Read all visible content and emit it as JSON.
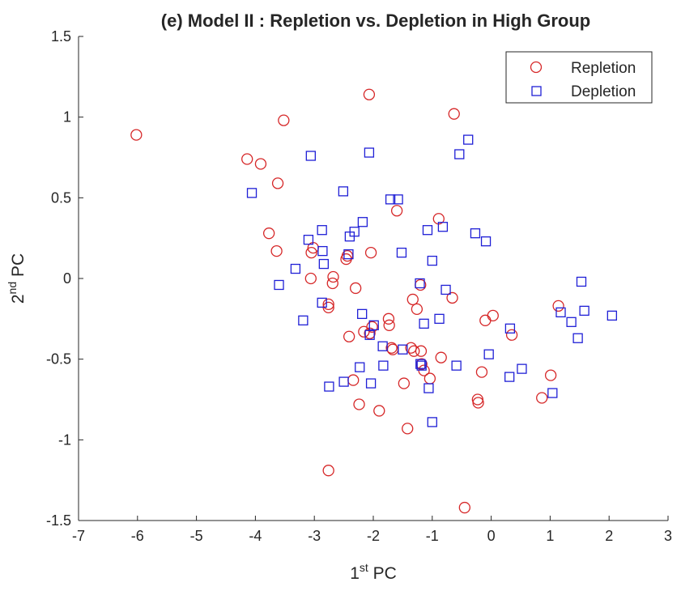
{
  "chart_data": {
    "type": "scatter",
    "title": "(e) Model II : Repletion vs. Depletion in High Group",
    "xlabel": {
      "base": "1",
      "sup": "st",
      "rest": " PC"
    },
    "ylabel": {
      "base": "2",
      "sup": "nd",
      "rest": " PC"
    },
    "xlim": [
      -7,
      3
    ],
    "ylim": [
      -1.5,
      1.5
    ],
    "xticks": [
      "-7",
      "-6",
      "-5",
      "-4",
      "-3",
      "-2",
      "-1",
      "0",
      "1",
      "2",
      "3"
    ],
    "yticks": [
      "-1.5",
      "-1",
      "-0.5",
      "0",
      "0.5",
      "1",
      "1.5"
    ],
    "grid": false,
    "legend_position": "top-right",
    "series": [
      {
        "name": "Repletion",
        "marker": "circle",
        "color": "#d62728",
        "points": [
          [
            -6.02,
            0.89
          ],
          [
            -4.14,
            0.74
          ],
          [
            -3.91,
            0.71
          ],
          [
            -3.52,
            0.98
          ],
          [
            -3.62,
            0.59
          ],
          [
            -3.77,
            0.28
          ],
          [
            -3.64,
            0.17
          ],
          [
            -3.02,
            0.19
          ],
          [
            -3.05,
            0.16
          ],
          [
            -3.06,
            0.0
          ],
          [
            -2.68,
            0.01
          ],
          [
            -2.69,
            -0.03
          ],
          [
            -2.76,
            -0.16
          ],
          [
            -2.76,
            -0.18
          ],
          [
            -2.44,
            0.14
          ],
          [
            -2.46,
            0.12
          ],
          [
            -2.3,
            -0.06
          ],
          [
            -2.04,
            0.16
          ],
          [
            -2.07,
            1.14
          ],
          [
            -1.6,
            0.42
          ],
          [
            -0.63,
            1.02
          ],
          [
            -0.89,
            0.37
          ],
          [
            -0.66,
            -0.12
          ],
          [
            -2.41,
            -0.36
          ],
          [
            -2.16,
            -0.33
          ],
          [
            -2.06,
            -0.34
          ],
          [
            -2.02,
            -0.3
          ],
          [
            -1.74,
            -0.25
          ],
          [
            -1.73,
            -0.29
          ],
          [
            -1.67,
            -0.44
          ],
          [
            -1.69,
            -0.43
          ],
          [
            -1.33,
            -0.13
          ],
          [
            -1.26,
            -0.19
          ],
          [
            -1.2,
            -0.04
          ],
          [
            -1.36,
            -0.43
          ],
          [
            -1.31,
            -0.45
          ],
          [
            -1.19,
            -0.45
          ],
          [
            -1.18,
            -0.53
          ],
          [
            -1.14,
            -0.57
          ],
          [
            -1.04,
            -0.62
          ],
          [
            -0.85,
            -0.49
          ],
          [
            -2.34,
            -0.63
          ],
          [
            -2.24,
            -0.78
          ],
          [
            -1.9,
            -0.82
          ],
          [
            -1.48,
            -0.65
          ],
          [
            -1.42,
            -0.93
          ],
          [
            -2.76,
            -1.19
          ],
          [
            -0.45,
            -1.42
          ],
          [
            -0.1,
            -0.26
          ],
          [
            0.03,
            -0.23
          ],
          [
            0.35,
            -0.35
          ],
          [
            -0.16,
            -0.58
          ],
          [
            -0.23,
            -0.75
          ],
          [
            -0.22,
            -0.77
          ],
          [
            1.01,
            -0.6
          ],
          [
            0.86,
            -0.74
          ],
          [
            1.14,
            -0.17
          ]
        ]
      },
      {
        "name": "Depletion",
        "marker": "square",
        "color": "#1f1fd6",
        "points": [
          [
            -4.06,
            0.53
          ],
          [
            -3.06,
            0.76
          ],
          [
            -2.07,
            0.78
          ],
          [
            -0.39,
            0.86
          ],
          [
            -0.54,
            0.77
          ],
          [
            -2.51,
            0.54
          ],
          [
            -1.71,
            0.49
          ],
          [
            -1.58,
            0.49
          ],
          [
            -2.18,
            0.35
          ],
          [
            -2.87,
            0.3
          ],
          [
            -2.32,
            0.29
          ],
          [
            -2.4,
            0.26
          ],
          [
            -3.1,
            0.24
          ],
          [
            -2.86,
            0.17
          ],
          [
            -2.42,
            0.15
          ],
          [
            -1.52,
            0.16
          ],
          [
            -1.08,
            0.3
          ],
          [
            -0.82,
            0.32
          ],
          [
            -0.27,
            0.28
          ],
          [
            -0.09,
            0.23
          ],
          [
            -2.84,
            0.09
          ],
          [
            -3.32,
            0.06
          ],
          [
            -3.6,
            -0.04
          ],
          [
            -1.0,
            0.11
          ],
          [
            -1.21,
            -0.03
          ],
          [
            -0.77,
            -0.07
          ],
          [
            -2.87,
            -0.15
          ],
          [
            -3.19,
            -0.26
          ],
          [
            -2.19,
            -0.22
          ],
          [
            -1.99,
            -0.29
          ],
          [
            -2.06,
            -0.35
          ],
          [
            -1.14,
            -0.28
          ],
          [
            -0.88,
            -0.25
          ],
          [
            -1.84,
            -0.42
          ],
          [
            -1.5,
            -0.44
          ],
          [
            -1.2,
            -0.53
          ],
          [
            -1.18,
            -0.54
          ],
          [
            -0.04,
            -0.47
          ],
          [
            -2.23,
            -0.55
          ],
          [
            -1.83,
            -0.54
          ],
          [
            -2.5,
            -0.64
          ],
          [
            -2.04,
            -0.65
          ],
          [
            -2.75,
            -0.67
          ],
          [
            -1.06,
            -0.68
          ],
          [
            -0.59,
            -0.54
          ],
          [
            -1.0,
            -0.89
          ],
          [
            0.52,
            -0.56
          ],
          [
            0.31,
            -0.61
          ],
          [
            0.32,
            -0.31
          ],
          [
            1.18,
            -0.21
          ],
          [
            1.36,
            -0.27
          ],
          [
            1.53,
            -0.02
          ],
          [
            1.58,
            -0.2
          ],
          [
            1.47,
            -0.37
          ],
          [
            2.05,
            -0.23
          ],
          [
            1.04,
            -0.71
          ]
        ]
      }
    ]
  }
}
